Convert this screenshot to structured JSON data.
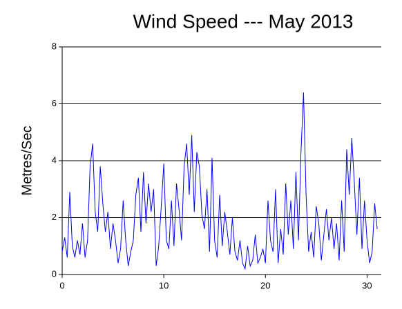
{
  "chart_data": {
    "type": "line",
    "title": "Wind Speed --- May 2013",
    "y_label": "Metres/Sec",
    "x": [
      0,
      0.25,
      0.5,
      0.75,
      1,
      1.25,
      1.5,
      1.75,
      2,
      2.25,
      2.5,
      2.75,
      3,
      3.25,
      3.5,
      3.75,
      4,
      4.25,
      4.5,
      4.75,
      5,
      5.25,
      5.5,
      5.75,
      6,
      6.25,
      6.5,
      6.75,
      7,
      7.25,
      7.5,
      7.75,
      8,
      8.25,
      8.5,
      8.75,
      9,
      9.25,
      9.5,
      9.75,
      10,
      10.25,
      10.5,
      10.75,
      11,
      11.25,
      11.5,
      11.75,
      12,
      12.25,
      12.5,
      12.75,
      13,
      13.25,
      13.5,
      13.75,
      14,
      14.25,
      14.5,
      14.75,
      15,
      15.25,
      15.5,
      15.75,
      16,
      16.25,
      16.5,
      16.75,
      17,
      17.25,
      17.5,
      17.75,
      18,
      18.25,
      18.5,
      18.75,
      19,
      19.25,
      19.5,
      19.75,
      20,
      20.25,
      20.5,
      20.75,
      21,
      21.25,
      21.5,
      21.75,
      22,
      22.25,
      22.5,
      22.75,
      23,
      23.25,
      23.5,
      23.75,
      24,
      24.25,
      24.5,
      24.75,
      25,
      25.25,
      25.5,
      25.75,
      26,
      26.25,
      26.5,
      26.75,
      27,
      27.25,
      27.5,
      27.75,
      28,
      28.25,
      28.5,
      28.75,
      29,
      29.25,
      29.5,
      29.75,
      30,
      30.25,
      30.5,
      30.75,
      31
    ],
    "values": [
      0.8,
      1.3,
      0.6,
      2.9,
      1.0,
      0.6,
      1.2,
      0.7,
      1.8,
      0.6,
      1.2,
      3.8,
      4.6,
      2.2,
      1.5,
      3.8,
      2.5,
      1.5,
      2.2,
      0.9,
      1.8,
      1.2,
      0.4,
      0.9,
      2.6,
      1.2,
      0.3,
      0.8,
      1.2,
      2.8,
      3.4,
      1.5,
      3.6,
      1.8,
      3.2,
      2.2,
      3.0,
      0.3,
      1.0,
      2.4,
      3.9,
      1.2,
      0.9,
      2.6,
      1.0,
      3.2,
      2.3,
      1.2,
      3.8,
      4.6,
      2.8,
      4.9,
      2.2,
      4.3,
      3.8,
      2.1,
      1.6,
      3.0,
      0.8,
      4.1,
      1.2,
      0.6,
      2.8,
      1.0,
      2.2,
      1.5,
      0.7,
      2.0,
      0.8,
      0.5,
      1.2,
      0.4,
      0.2,
      1.0,
      0.3,
      0.5,
      1.4,
      0.4,
      0.6,
      0.9,
      0.4,
      2.6,
      1.2,
      0.8,
      3.0,
      0.4,
      1.6,
      0.7,
      3.2,
      1.4,
      2.6,
      0.9,
      3.6,
      1.2,
      4.3,
      6.4,
      2.8,
      0.8,
      1.5,
      0.6,
      2.4,
      1.8,
      0.5,
      1.4,
      2.3,
      1.2,
      2.0,
      0.9,
      1.8,
      0.5,
      2.6,
      0.8,
      4.4,
      2.8,
      4.8,
      3.2,
      1.4,
      3.4,
      0.9,
      2.6,
      1.2,
      0.4,
      0.8,
      2.5,
      1.6
    ],
    "color": "#0000ff",
    "xlim": [
      0,
      31.4
    ],
    "ylim": [
      0,
      8
    ],
    "xticks": [
      0,
      10,
      20,
      30
    ],
    "yticks": [
      0,
      2,
      4,
      6,
      8
    ],
    "grid": true
  }
}
